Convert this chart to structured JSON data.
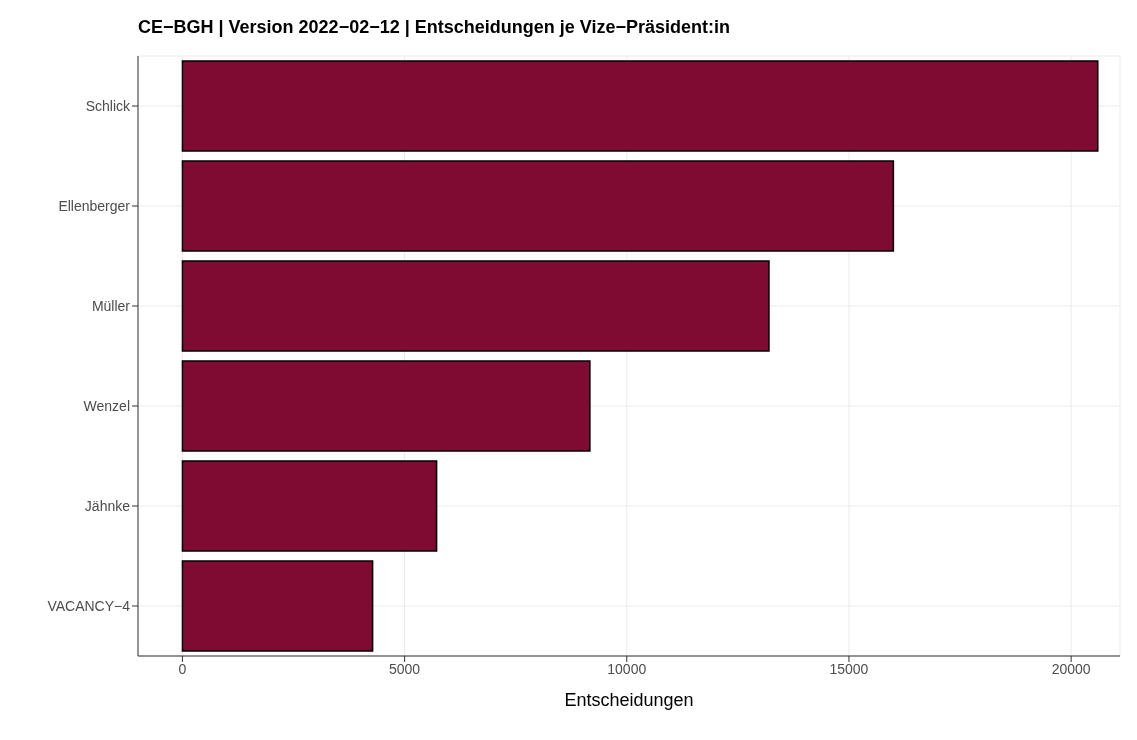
{
  "chart_data": {
    "type": "bar",
    "orientation": "horizontal",
    "title": "CE−BGH | Version 2022−02−12 | Entscheidungen je Vize−Präsident:in",
    "xlabel": "Entscheidungen",
    "categories": [
      "Schlick",
      "Ellenberger",
      "Müller",
      "Wenzel",
      "Jähnke",
      "VACANCY−4"
    ],
    "values": [
      20600,
      16000,
      13200,
      9170,
      5720,
      4280
    ],
    "color": "#7f0a32",
    "xlim": [
      -1000,
      21100
    ],
    "xticks": [
      0,
      5000,
      10000,
      15000,
      20000
    ],
    "grid": true
  }
}
